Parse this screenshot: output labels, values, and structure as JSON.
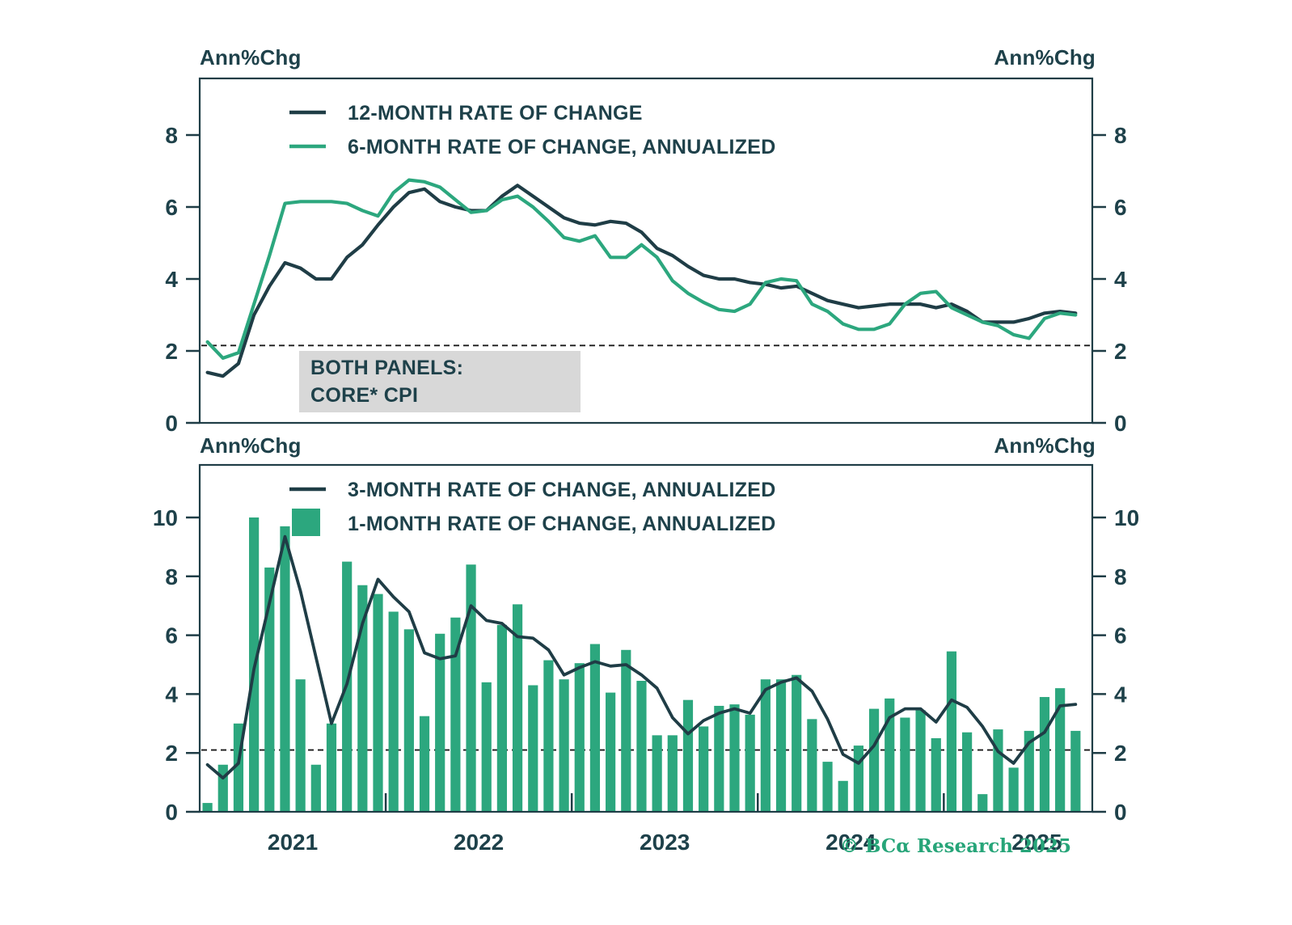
{
  "labels": {
    "axis_units": "Ann%Chg"
  },
  "annotation": {
    "line1": "BOTH PANELS:",
    "line2": "CORE* CPI"
  },
  "watermark": "© BCα Research 2025",
  "colors": {
    "dark": "#1f3d46",
    "green": "#2ca77e",
    "text": "#1e414a",
    "annotation_bg": "#d8d8d8",
    "dashed": "#1a1a1a"
  },
  "chart_data": [
    {
      "type": "line",
      "panel": "top",
      "x_freq": "monthly",
      "x_start": "2021-01",
      "x_points": 57,
      "ylim": [
        0,
        9.55
      ],
      "yticks": [
        0,
        2,
        4,
        6,
        8
      ],
      "target_line": 2.15,
      "grid": "off",
      "legend_position": "top-left-inside",
      "series": [
        {
          "name": "12-MONTH RATE OF CHANGE",
          "type": "line",
          "color": "dark",
          "width": 4.2,
          "values": [
            1.4,
            1.3,
            1.65,
            3.0,
            3.8,
            4.45,
            4.3,
            4.0,
            4.0,
            4.6,
            4.95,
            5.5,
            6.0,
            6.4,
            6.5,
            6.15,
            6.0,
            5.9,
            5.9,
            6.3,
            6.6,
            6.3,
            6.0,
            5.7,
            5.55,
            5.5,
            5.6,
            5.55,
            5.3,
            4.85,
            4.65,
            4.35,
            4.1,
            4.0,
            4.0,
            3.9,
            3.85,
            3.75,
            3.8,
            3.6,
            3.4,
            3.3,
            3.2,
            3.25,
            3.3,
            3.3,
            3.3,
            3.2,
            3.3,
            3.1,
            2.8,
            2.8,
            2.8,
            2.9,
            3.05,
            3.1,
            3.05
          ]
        },
        {
          "name": "6-MONTH RATE OF CHANGE, ANNUALIZED",
          "type": "line",
          "color": "green",
          "width": 4.2,
          "values": [
            2.25,
            1.8,
            1.95,
            3.3,
            4.65,
            6.1,
            6.15,
            6.15,
            6.15,
            6.1,
            5.9,
            5.75,
            6.4,
            6.75,
            6.7,
            6.55,
            6.2,
            5.85,
            5.9,
            6.2,
            6.3,
            6.0,
            5.6,
            5.15,
            5.05,
            5.2,
            4.6,
            4.6,
            4.95,
            4.6,
            3.95,
            3.6,
            3.35,
            3.15,
            3.1,
            3.3,
            3.9,
            4.0,
            3.95,
            3.3,
            3.1,
            2.75,
            2.6,
            2.6,
            2.75,
            3.3,
            3.6,
            3.65,
            3.2,
            3.0,
            2.8,
            2.7,
            2.45,
            2.35,
            2.9,
            3.05,
            3.0
          ]
        }
      ]
    },
    {
      "type": "bar",
      "panel": "bottom",
      "x_freq": "monthly",
      "x_start": "2021-01",
      "x_points": 57,
      "ylim": [
        0,
        11.8
      ],
      "yticks": [
        0,
        2,
        4,
        6,
        8,
        10
      ],
      "target_line": 2.1,
      "grid": "off",
      "legend_position": "top-left-inside",
      "x_year_labels": [
        "2021",
        "2022",
        "2023",
        "2024",
        "2025"
      ],
      "series": [
        {
          "name": "3-MONTH RATE OF CHANGE, ANNUALIZED",
          "type": "line",
          "color": "dark",
          "width": 3.8,
          "values": [
            1.6,
            1.15,
            1.65,
            4.85,
            7.1,
            9.35,
            7.5,
            5.25,
            3.0,
            4.35,
            6.4,
            7.9,
            7.3,
            6.8,
            5.4,
            5.2,
            5.3,
            7.0,
            6.5,
            6.4,
            5.95,
            5.9,
            5.5,
            4.65,
            4.9,
            5.1,
            4.95,
            5.0,
            4.65,
            4.2,
            3.2,
            2.65,
            3.1,
            3.35,
            3.5,
            3.35,
            4.15,
            4.4,
            4.55,
            4.1,
            3.15,
            1.95,
            1.65,
            2.25,
            3.2,
            3.5,
            3.5,
            3.05,
            3.8,
            3.55,
            2.9,
            2.05,
            1.65,
            2.35,
            2.7,
            3.6,
            3.65
          ]
        },
        {
          "name": "1-MONTH RATE OF CHANGE, ANNUALIZED",
          "type": "bar",
          "color": "green",
          "values": [
            0.3,
            1.6,
            3.0,
            10.0,
            8.3,
            9.7,
            4.5,
            1.6,
            3.0,
            8.5,
            7.7,
            7.4,
            6.8,
            6.2,
            3.25,
            6.05,
            6.6,
            8.4,
            4.4,
            6.35,
            7.05,
            4.3,
            5.15,
            4.5,
            5.05,
            5.7,
            4.05,
            5.5,
            4.45,
            2.6,
            2.6,
            3.8,
            2.9,
            3.6,
            3.65,
            3.3,
            4.5,
            4.5,
            4.65,
            3.15,
            1.7,
            1.05,
            2.25,
            3.5,
            3.85,
            3.2,
            3.45,
            2.5,
            5.45,
            2.7,
            0.6,
            2.8,
            1.5,
            2.75,
            3.9,
            4.2,
            2.75
          ]
        }
      ]
    }
  ]
}
